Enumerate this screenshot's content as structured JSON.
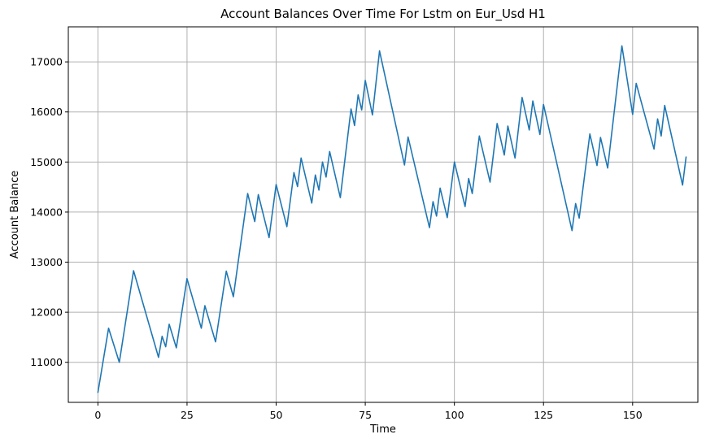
{
  "chart_data": {
    "type": "line",
    "title": "Account Balances Over Time For Lstm on Eur_Usd H1",
    "xlabel": "Time",
    "ylabel": "Account Balance",
    "xlim": [
      -8.3,
      168.3
    ],
    "ylim": [
      10200,
      17700
    ],
    "xticks": [
      0,
      25,
      50,
      75,
      100,
      125,
      150
    ],
    "yticks": [
      11000,
      12000,
      13000,
      14000,
      15000,
      16000,
      17000
    ],
    "grid": true,
    "line_color": "#1f77b4",
    "series": [
      {
        "points": [
          [
            0,
            10400
          ],
          [
            3,
            11680
          ],
          [
            6,
            11000
          ],
          [
            10,
            12830
          ],
          [
            17,
            11100
          ],
          [
            18,
            11520
          ],
          [
            19,
            11310
          ],
          [
            20,
            11760
          ],
          [
            22,
            11290
          ],
          [
            25,
            12670
          ],
          [
            29,
            11680
          ],
          [
            30,
            12130
          ],
          [
            33,
            11410
          ],
          [
            36,
            12820
          ],
          [
            38,
            12310
          ],
          [
            42,
            14370
          ],
          [
            44,
            13810
          ],
          [
            45,
            14350
          ],
          [
            48,
            13490
          ],
          [
            50,
            14550
          ],
          [
            53,
            13710
          ],
          [
            55,
            14790
          ],
          [
            56,
            14510
          ],
          [
            57,
            15080
          ],
          [
            60,
            14180
          ],
          [
            61,
            14740
          ],
          [
            62,
            14440
          ],
          [
            63,
            15000
          ],
          [
            64,
            14700
          ],
          [
            65,
            15210
          ],
          [
            68,
            14290
          ],
          [
            71,
            16060
          ],
          [
            72,
            15730
          ],
          [
            73,
            16340
          ],
          [
            74,
            16040
          ],
          [
            75,
            16630
          ],
          [
            77,
            15940
          ],
          [
            79,
            17220
          ],
          [
            86,
            14940
          ],
          [
            87,
            15500
          ],
          [
            93,
            13690
          ],
          [
            94,
            14210
          ],
          [
            95,
            13920
          ],
          [
            96,
            14480
          ],
          [
            98,
            13890
          ],
          [
            100,
            15000
          ],
          [
            103,
            14110
          ],
          [
            104,
            14670
          ],
          [
            105,
            14370
          ],
          [
            107,
            15520
          ],
          [
            110,
            14600
          ],
          [
            112,
            15770
          ],
          [
            114,
            15140
          ],
          [
            115,
            15720
          ],
          [
            117,
            15080
          ],
          [
            119,
            16290
          ],
          [
            121,
            15640
          ],
          [
            122,
            16220
          ],
          [
            124,
            15550
          ],
          [
            125,
            16150
          ],
          [
            133,
            13630
          ],
          [
            134,
            14170
          ],
          [
            135,
            13880
          ],
          [
            138,
            15560
          ],
          [
            140,
            14930
          ],
          [
            141,
            15490
          ],
          [
            143,
            14880
          ],
          [
            147,
            17320
          ],
          [
            150,
            15950
          ],
          [
            151,
            16570
          ],
          [
            156,
            15260
          ],
          [
            157,
            15860
          ],
          [
            158,
            15520
          ],
          [
            159,
            16130
          ],
          [
            164,
            14540
          ],
          [
            165,
            15100
          ]
        ]
      }
    ]
  }
}
